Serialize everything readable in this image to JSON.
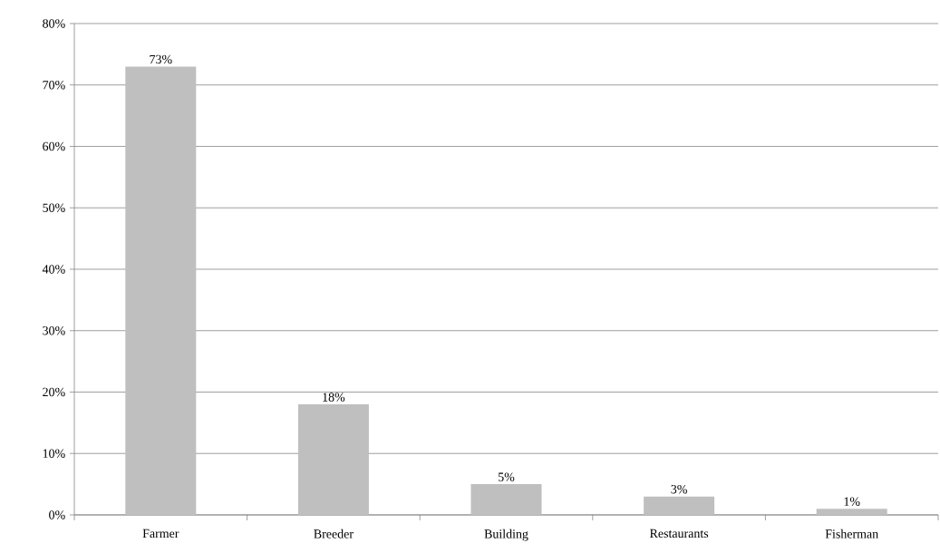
{
  "chart_data": {
    "type": "bar",
    "categories": [
      "Farmer",
      "Breeder",
      "Building",
      "Restaurants",
      "Fisherman"
    ],
    "values": [
      73,
      18,
      5,
      3,
      1
    ],
    "value_labels": [
      "73%",
      "18%",
      "5%",
      "3%",
      "1%"
    ],
    "color": "#bfbfbf",
    "ylim": [
      0,
      80
    ],
    "yticks": [
      {
        "value": 0,
        "label": "0%"
      },
      {
        "value": 10,
        "label": "10%"
      },
      {
        "value": 20,
        "label": "20%"
      },
      {
        "value": 30,
        "label": "30%"
      },
      {
        "value": 40,
        "label": "40%"
      },
      {
        "value": 50,
        "label": "50%"
      },
      {
        "value": 60,
        "label": "60%"
      },
      {
        "value": 70,
        "label": "70%"
      },
      {
        "value": 80,
        "label": "80%"
      }
    ],
    "grid": "y"
  }
}
